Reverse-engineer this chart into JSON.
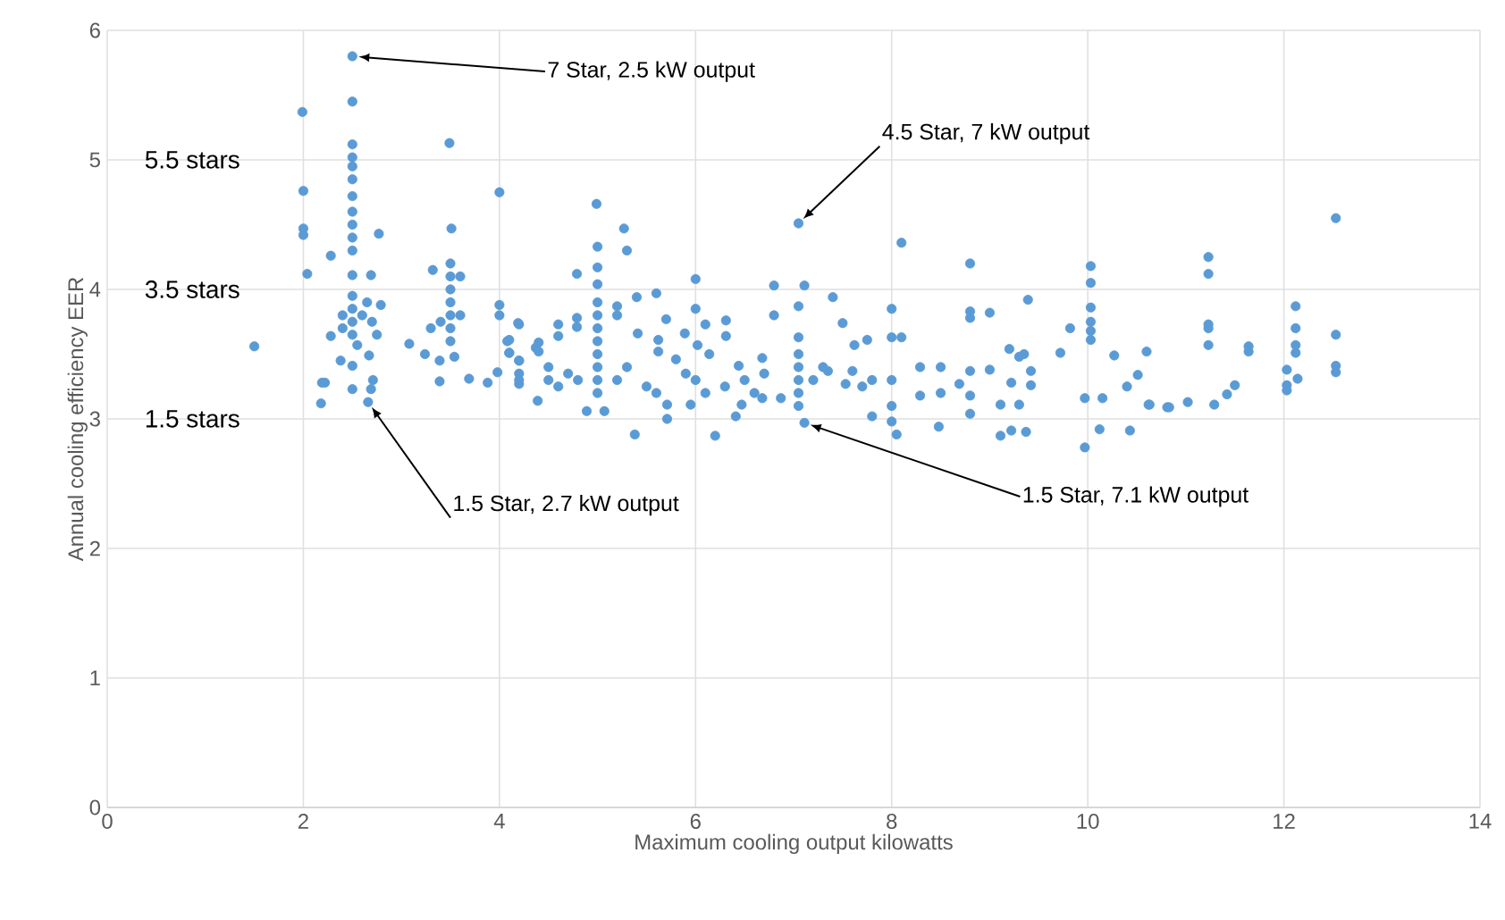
{
  "chart_data": {
    "type": "scatter",
    "xlabel": "Maximum cooling output kilowatts",
    "ylabel": "Annual cooling efficiency EER",
    "xlim": [
      0,
      14
    ],
    "ylim": [
      0,
      6
    ],
    "xticks": [
      0,
      2,
      4,
      6,
      8,
      10,
      12,
      14
    ],
    "yticks": [
      0,
      1,
      2,
      3,
      4,
      5,
      6
    ],
    "grid": true,
    "marker": "circle",
    "annotations": [
      "5.5 stars",
      "3.5 stars",
      "1.5 stars",
      {
        "text": "7 Star, 2.5 kW output",
        "x": 2.5,
        "y": 5.8
      },
      {
        "text": "4.5 Star, 7 kW output",
        "x": 7.05,
        "y": 4.51
      },
      {
        "text": "1.5 Star, 2.7 kW output",
        "x": 2.66,
        "y": 3.13
      },
      {
        "text": "1.5 Star, 7.1 kW output",
        "x": 7.11,
        "y": 2.97
      }
    ],
    "series": [
      {
        "color": "#5b9bd5",
        "x": [
          2.5,
          1.99,
          2.5,
          3.49,
          2.5,
          2.0,
          4.0,
          2.5,
          2.5,
          2.5,
          2.0,
          2.0,
          2.77,
          3.51,
          2.5,
          2.5,
          2.5,
          2.5,
          2.5,
          2.28,
          2.04,
          3.32,
          3.5,
          3.5,
          3.5,
          3.5,
          3.5,
          3.5,
          3.5,
          2.5,
          2.69,
          2.79,
          2.5,
          2.5,
          2.5,
          2.5,
          2.6,
          2.7,
          2.75,
          2.65,
          2.4,
          2.4,
          1.5,
          2.28,
          2.55,
          2.38,
          2.67,
          2.19,
          2.22,
          2.18,
          2.5,
          2.5,
          2.69,
          2.71,
          2.66,
          3.08,
          3.24,
          3.3,
          3.4,
          3.6,
          3.6,
          3.39,
          3.39,
          3.54,
          3.69,
          3.88,
          3.98,
          4.0,
          4.0,
          4.2,
          4.08,
          4.1,
          4.2,
          4.2,
          4.2,
          4.37,
          4.99,
          5.27,
          5.3,
          5.0,
          5.0,
          5.0,
          4.79,
          5.4,
          5.6,
          5.0,
          5.0,
          5.0,
          5.0,
          5.0,
          5.0,
          5.0,
          5.0,
          6.0,
          6.0,
          7.05,
          6.8,
          7.11,
          7.05,
          6.8,
          7.4,
          7.5,
          6.31,
          6.31,
          6.1,
          5.7,
          5.2,
          5.2,
          5.41,
          4.19,
          4.6,
          4.6,
          4.79,
          4.79,
          4.4,
          4.4,
          4.1,
          4.1,
          4.2,
          4.2,
          4.5,
          4.5,
          4.39,
          4.89,
          5.07,
          5.38,
          5.71,
          5.71,
          5.95,
          6.2,
          5.62,
          5.62,
          5.8,
          5.89,
          6.02,
          6.14,
          6.44,
          6.47,
          6.41,
          6.68,
          6.68,
          7.05,
          7.05,
          7.05,
          7.05,
          7.05,
          7.05,
          7.11,
          6.87,
          7.35,
          7.53,
          7.62,
          5.2,
          4.8,
          5.3,
          5.5,
          5.6,
          4.6,
          4.7,
          6.7,
          6.5,
          6.3,
          6.1,
          6.0,
          5.9,
          6.6,
          7.2,
          7.3,
          7.7,
          7.8,
          8.0,
          8.0,
          8.0,
          8.1,
          8.8,
          8.0,
          8.0,
          8.1,
          8.8,
          8.8,
          9.0,
          9.39,
          10.03,
          10.03,
          10.03,
          10.03,
          10.03,
          10.03,
          9.82,
          9.72,
          10.27,
          10.6,
          10.51,
          10.4,
          10.62,
          10.81,
          10.43,
          10.12,
          9.97,
          9.11,
          9.22,
          9.37,
          8.48,
          7.8,
          8.05,
          9.35,
          9.3,
          9.2,
          9.42,
          9.42,
          9.22,
          9.0,
          8.8,
          8.8,
          8.8,
          8.5,
          8.5,
          8.69,
          8.29,
          8.29,
          9.11,
          9.3,
          9.97,
          10.15,
          7.6,
          7.75,
          11.23,
          11.23,
          12.53,
          11.23,
          11.23,
          11.23,
          11.64,
          11.64,
          12.12,
          12.12,
          12.12,
          12.12,
          12.03,
          12.14,
          12.03,
          12.03,
          12.53,
          12.53,
          12.53,
          11.5,
          11.42,
          11.29,
          11.02,
          10.83,
          10.63
        ],
        "values": [
          5.8,
          5.37,
          5.45,
          5.13,
          5.12,
          4.76,
          4.75,
          5.02,
          4.95,
          4.85,
          4.47,
          4.42,
          4.43,
          4.47,
          4.72,
          4.6,
          4.5,
          4.4,
          4.3,
          4.26,
          4.12,
          4.15,
          4.2,
          4.1,
          4.0,
          3.9,
          3.8,
          3.7,
          3.6,
          4.11,
          4.11,
          3.88,
          3.95,
          3.85,
          3.75,
          3.65,
          3.8,
          3.75,
          3.65,
          3.9,
          3.7,
          3.8,
          3.56,
          3.64,
          3.57,
          3.45,
          3.49,
          3.28,
          3.28,
          3.12,
          3.41,
          3.23,
          3.23,
          3.3,
          3.13,
          3.58,
          3.5,
          3.7,
          3.75,
          4.1,
          3.8,
          3.45,
          3.29,
          3.48,
          3.31,
          3.28,
          3.36,
          3.88,
          3.8,
          3.73,
          3.6,
          3.51,
          3.45,
          3.35,
          3.27,
          3.55,
          4.66,
          4.47,
          4.3,
          4.33,
          4.17,
          4.04,
          4.12,
          3.94,
          3.97,
          3.9,
          3.8,
          3.7,
          3.6,
          3.5,
          3.4,
          3.3,
          3.2,
          4.08,
          3.85,
          4.51,
          4.03,
          4.03,
          3.87,
          3.8,
          3.94,
          3.74,
          3.76,
          3.64,
          3.73,
          3.77,
          3.87,
          3.8,
          3.66,
          3.74,
          3.73,
          3.64,
          3.78,
          3.71,
          3.59,
          3.52,
          3.61,
          3.51,
          3.45,
          3.3,
          3.4,
          3.3,
          3.14,
          3.06,
          3.06,
          2.88,
          3.11,
          3.0,
          3.11,
          2.87,
          3.61,
          3.52,
          3.46,
          3.66,
          3.57,
          3.5,
          3.41,
          3.11,
          3.02,
          3.47,
          3.16,
          3.63,
          3.5,
          3.4,
          3.3,
          3.2,
          3.1,
          2.97,
          3.16,
          3.37,
          3.27,
          3.57,
          3.3,
          3.3,
          3.4,
          3.25,
          3.2,
          3.25,
          3.35,
          3.35,
          3.3,
          3.25,
          3.2,
          3.3,
          3.35,
          3.2,
          3.3,
          3.4,
          3.25,
          3.3,
          3.3,
          3.1,
          2.98,
          4.36,
          4.2,
          3.85,
          3.63,
          3.63,
          3.83,
          3.78,
          3.82,
          3.92,
          4.18,
          4.05,
          3.86,
          3.75,
          3.68,
          3.61,
          3.7,
          3.51,
          3.49,
          3.52,
          3.34,
          3.25,
          3.11,
          3.09,
          2.91,
          2.92,
          2.78,
          2.87,
          2.91,
          2.9,
          2.94,
          3.02,
          2.88,
          3.5,
          3.48,
          3.54,
          3.37,
          3.26,
          3.28,
          3.38,
          3.37,
          3.18,
          3.04,
          3.4,
          3.2,
          3.27,
          3.4,
          3.18,
          3.11,
          3.11,
          3.16,
          3.16,
          3.37,
          3.61,
          4.25,
          4.12,
          4.55,
          3.73,
          3.7,
          3.57,
          3.56,
          3.52,
          3.87,
          3.7,
          3.57,
          3.51,
          3.38,
          3.31,
          3.26,
          3.22,
          3.65,
          3.41,
          3.36,
          3.26,
          3.19,
          3.11,
          3.13,
          3.09,
          3.11
        ]
      }
    ]
  }
}
